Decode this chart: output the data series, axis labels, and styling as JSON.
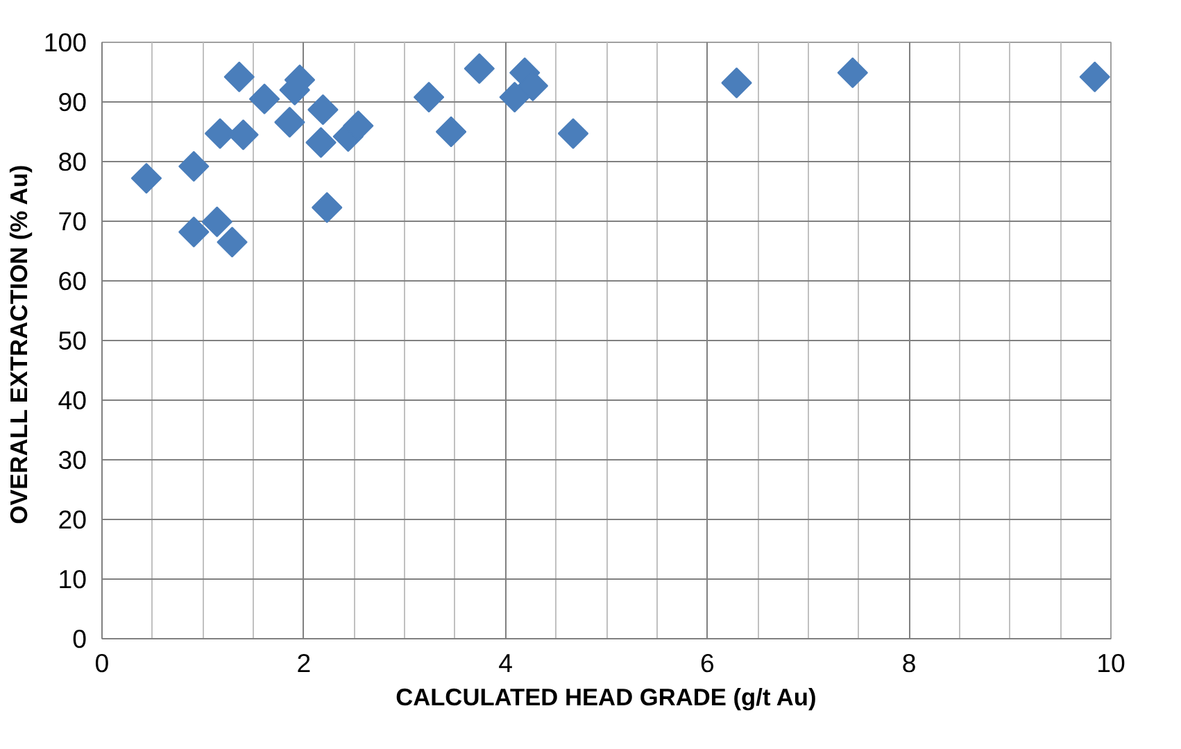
{
  "chart_data": {
    "type": "scatter",
    "xlabel": "CALCULATED HEAD GRADE (g/t Au)",
    "ylabel": "OVERALL EXTRACTION  (% Au)",
    "x": [
      0.44,
      0.91,
      0.91,
      1.14,
      1.17,
      1.29,
      1.36,
      1.4,
      1.61,
      1.86,
      1.91,
      1.96,
      2.19,
      2.17,
      2.23,
      2.44,
      2.54,
      3.24,
      3.46,
      3.74,
      4.09,
      4.19,
      4.27,
      4.67,
      6.29,
      7.44,
      9.84
    ],
    "values": [
      77.2,
      79.2,
      68.2,
      69.9,
      84.7,
      66.5,
      94.2,
      84.5,
      90.5,
      86.6,
      92.0,
      93.7,
      88.7,
      83.2,
      72.3,
      84.2,
      86.0,
      90.8,
      85.0,
      95.6,
      90.8,
      94.9,
      92.7,
      84.7,
      93.2,
      94.9,
      94.2
    ],
    "color": "#4a7ebb",
    "marker": "diamond",
    "grid": true,
    "xlim": [
      0,
      10
    ],
    "xticks": [
      0,
      2,
      4,
      6,
      8,
      10
    ],
    "ylim": [
      0,
      100
    ],
    "yticks": [
      0,
      10,
      20,
      30,
      40,
      50,
      60,
      70,
      80,
      90,
      100
    ]
  }
}
